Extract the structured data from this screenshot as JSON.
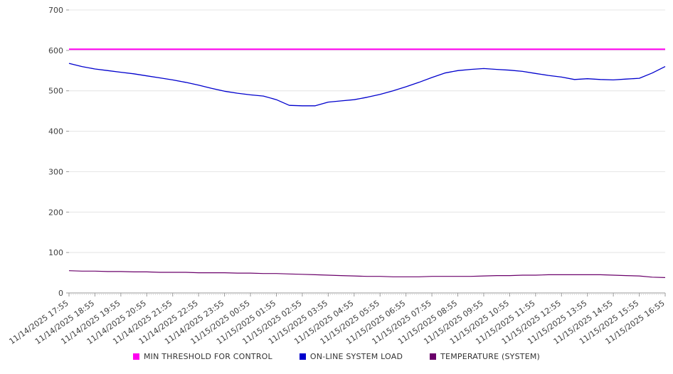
{
  "chart_data": {
    "type": "line",
    "title": "",
    "xlabel": "",
    "ylabel": "",
    "ylim": [
      0,
      700
    ],
    "y_ticks": [
      0,
      100,
      200,
      300,
      400,
      500,
      600,
      700
    ],
    "grid": true,
    "legend_position": "bottom",
    "x_tick_labels": [
      "11/14/2025 17:55",
      "11/14/2025 18:55",
      "11/14/2025 19:55",
      "11/14/2025 20:55",
      "11/14/2025 21:55",
      "11/14/2025 22:55",
      "11/14/2025 23:55",
      "11/15/2025 00:55",
      "11/15/2025 01:55",
      "11/15/2025 02:55",
      "11/15/2025 03:55",
      "11/15/2025 04:55",
      "11/15/2025 05:55",
      "11/15/2025 06:55",
      "11/15/2025 07:55",
      "11/15/2025 08:55",
      "11/15/2025 09:55",
      "11/15/2025 10:55",
      "11/15/2025 11:55",
      "11/15/2025 12:55",
      "11/15/2025 13:55",
      "11/15/2025 14:55",
      "11/15/2025 15:55",
      "11/15/2025 16:55"
    ],
    "series": [
      {
        "name": "MIN THRESHOLD FOR CONTROL",
        "color": "#ff00f0",
        "stroke_width": 2,
        "values": [
          603,
          603
        ]
      },
      {
        "name": "ON-LINE SYSTEM LOAD",
        "color": "#0000cd",
        "stroke_width": 1.3,
        "values": [
          568,
          560,
          554,
          550,
          546,
          542,
          537,
          532,
          527,
          521,
          514,
          506,
          499,
          494,
          490,
          487,
          478,
          464,
          463,
          463,
          472,
          475,
          478,
          484,
          491,
          500,
          510,
          521,
          533,
          544,
          550,
          553,
          555,
          553,
          551,
          548,
          543,
          538,
          534,
          528,
          530,
          528,
          527,
          529,
          531,
          544,
          560
        ]
      },
      {
        "name": "TEMPERATURE (SYSTEM)",
        "color": "#6a006a",
        "stroke_width": 1.2,
        "values": [
          55,
          54,
          54,
          53,
          53,
          52,
          52,
          51,
          51,
          51,
          50,
          50,
          50,
          49,
          49,
          48,
          48,
          47,
          46,
          45,
          44,
          43,
          42,
          41,
          41,
          40,
          40,
          40,
          41,
          41,
          41,
          41,
          42,
          43,
          43,
          44,
          44,
          45,
          45,
          45,
          45,
          45,
          44,
          43,
          42,
          39,
          38
        ]
      }
    ],
    "axis_colors": {
      "grid": "#e4e4e4",
      "axis": "#999999",
      "minor_tick": "#cfcfcf",
      "text": "#404040"
    }
  }
}
